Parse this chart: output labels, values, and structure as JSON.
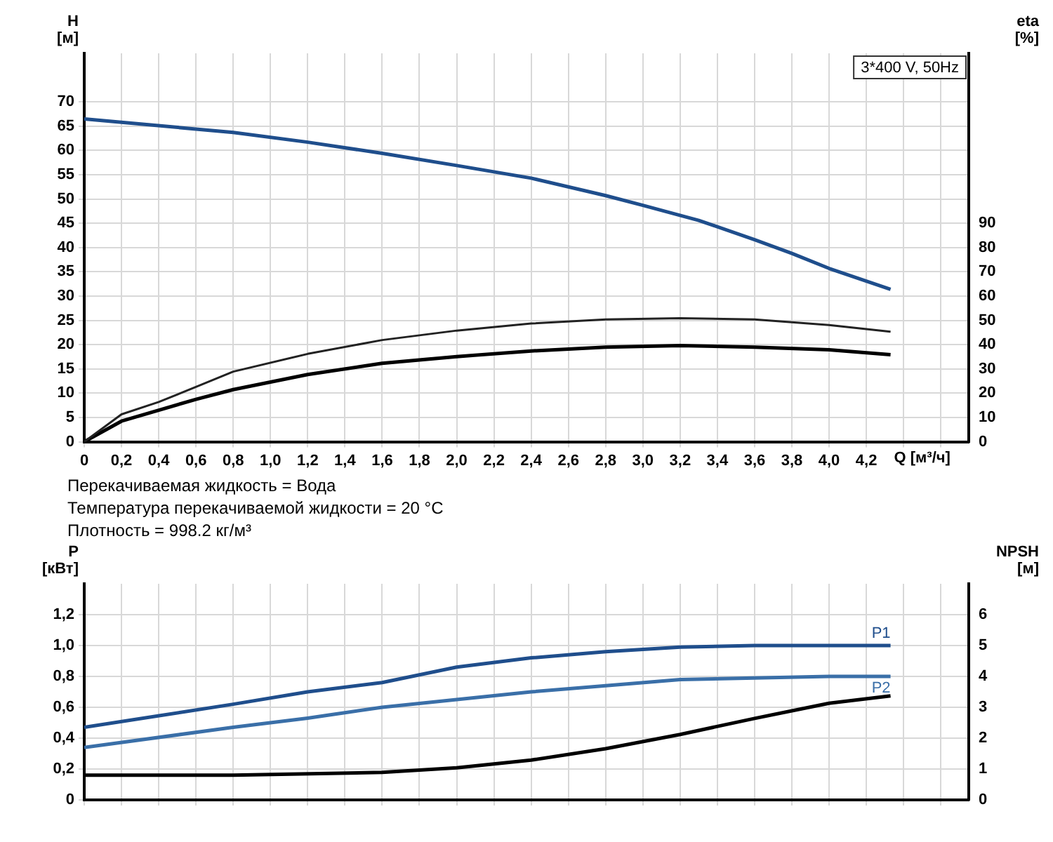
{
  "chart_data": [
    {
      "type": "line",
      "xlabel": "Q [м³/ч]",
      "ylabel": "H [м]",
      "y2label": "eta [%]",
      "xlim": [
        0,
        4.75
      ],
      "xticks": [
        0,
        {
          "value": 0.2,
          "label": "0,2"
        },
        {
          "value": 0.4,
          "label": "0,4"
        },
        {
          "value": 0.6,
          "label": "0,6"
        },
        {
          "value": 0.8,
          "label": "0,8"
        },
        {
          "value": 1,
          "label": "1,0"
        },
        {
          "value": 1.2,
          "label": "1,2"
        },
        {
          "value": 1.4,
          "label": "1,4"
        },
        {
          "value": 1.6,
          "label": "1,6"
        },
        {
          "value": 1.8,
          "label": "1,8"
        },
        {
          "value": 2,
          "label": "2,0"
        },
        {
          "value": 2.2,
          "label": "2,2"
        },
        {
          "value": 2.4,
          "label": "2,4"
        },
        {
          "value": 2.6,
          "label": "2,6"
        },
        {
          "value": 2.8,
          "label": "2,8"
        },
        {
          "value": 3,
          "label": "3,0"
        },
        {
          "value": 3.2,
          "label": "3,2"
        },
        {
          "value": 3.4,
          "label": "3,4"
        },
        {
          "value": 3.6,
          "label": "3,6"
        },
        {
          "value": 3.8,
          "label": "3,8"
        },
        {
          "value": 4,
          "label": "4,0"
        },
        {
          "value": 4.2,
          "label": "4,2"
        },
        {
          "value": 4.4,
          "label": null
        },
        {
          "value": 4.6,
          "label": null
        }
      ],
      "ylim": [
        0,
        80
      ],
      "yticks": [
        0,
        5,
        10,
        15,
        20,
        25,
        30,
        35,
        40,
        45,
        50,
        55,
        60,
        65,
        70
      ],
      "y2lim": [
        0,
        160
      ],
      "y2ticks": [
        0,
        10,
        20,
        30,
        40,
        50,
        60,
        70,
        80,
        90
      ],
      "grid": true,
      "legend": false,
      "marker": "none",
      "line_style": "solid",
      "annotations": [
        "3*400 V, 50Hz",
        "Перекачиваемая жидкость = Вода",
        "Температура перекачиваемой жидкости = 20 °C",
        "Плотность = 998.2 кг/м³"
      ],
      "series": [
        {
          "color": "#1f4e8c",
          "x": [
            0,
            0.8,
            1.2,
            1.6,
            2.0,
            2.4,
            2.8,
            3.0,
            3.3,
            3.6,
            3.8,
            4.0,
            4.33
          ],
          "values": [
            66.5,
            63.7,
            61.7,
            59.4,
            56.9,
            54.3,
            50.7,
            48.7,
            45.6,
            41.6,
            38.8,
            35.7,
            31.4
          ]
        },
        {
          "color": "#222222",
          "axis": "y2",
          "x": [
            0,
            0.2,
            0.4,
            0.6,
            0.8,
            1.2,
            1.6,
            2.0,
            2.4,
            2.8,
            3.2,
            3.6,
            4.0,
            4.33
          ],
          "values": [
            0,
            11.3,
            16.4,
            22.6,
            28.9,
            36.2,
            41.9,
            45.8,
            48.7,
            50.4,
            50.9,
            50.4,
            48.1,
            45.3
          ]
        },
        {
          "color": "#000000",
          "axis": "y2",
          "x": [
            0,
            0.2,
            0.4,
            0.6,
            0.8,
            1.2,
            1.6,
            2.0,
            2.4,
            2.8,
            3.2,
            3.6,
            4.0,
            4.33
          ],
          "values": [
            0,
            8.5,
            13.0,
            17.5,
            21.5,
            27.7,
            32.3,
            35.1,
            37.4,
            39.0,
            39.6,
            39.0,
            37.9,
            35.9
          ]
        }
      ]
    },
    {
      "type": "line",
      "ylabel": "P [кВт]",
      "y2label": "NPSH [м]",
      "xlim": [
        0,
        4.75
      ],
      "xticks": [
        0,
        0.2,
        0.4,
        0.6,
        0.8,
        1,
        1.2,
        1.4,
        1.6,
        1.8,
        2,
        2.2,
        2.4,
        2.6,
        2.8,
        3,
        3.2,
        3.4,
        3.6,
        3.8,
        4,
        4.2,
        4.4,
        4.6
      ],
      "ylim": [
        0,
        1.4
      ],
      "yticks": [
        0,
        {
          "value": 0.2,
          "label": "0,2"
        },
        {
          "value": 0.4,
          "label": "0,4"
        },
        {
          "value": 0.6,
          "label": "0,6"
        },
        {
          "value": 0.8,
          "label": "0,8"
        },
        {
          "value": 1,
          "label": "1,0"
        },
        {
          "value": 1.2,
          "label": "1,2"
        }
      ],
      "y2lim": [
        0,
        7
      ],
      "y2ticks": [
        0,
        1,
        2,
        3,
        4,
        5,
        6
      ],
      "tick_labels": "y",
      "grid": true,
      "legend": false,
      "marker": "none",
      "line_style": "solid",
      "series": [
        {
          "name": "P1",
          "color": "#1f4e8c",
          "x": [
            0,
            0.8,
            1.2,
            1.6,
            2.0,
            2.4,
            2.8,
            3.2,
            3.6,
            4.0,
            4.33
          ],
          "values": [
            0.47,
            0.62,
            0.7,
            0.76,
            0.86,
            0.92,
            0.96,
            0.99,
            1.0,
            1.0,
            1.0
          ]
        },
        {
          "name": "P2",
          "color": "#3a6fa8",
          "x": [
            0,
            0.8,
            1.2,
            1.6,
            2.0,
            2.4,
            2.8,
            3.2,
            3.6,
            4.0,
            4.33
          ],
          "values": [
            0.34,
            0.47,
            0.53,
            0.6,
            0.65,
            0.7,
            0.74,
            0.78,
            0.79,
            0.8,
            0.8
          ]
        },
        {
          "color": "#000000",
          "axis": "y2",
          "x": [
            0,
            0.8,
            1.6,
            2.0,
            2.4,
            2.8,
            3.2,
            3.6,
            4.0,
            4.33
          ],
          "values": [
            0.8,
            0.8,
            0.89,
            1.04,
            1.29,
            1.66,
            2.12,
            2.64,
            3.13,
            3.37
          ]
        }
      ]
    }
  ]
}
